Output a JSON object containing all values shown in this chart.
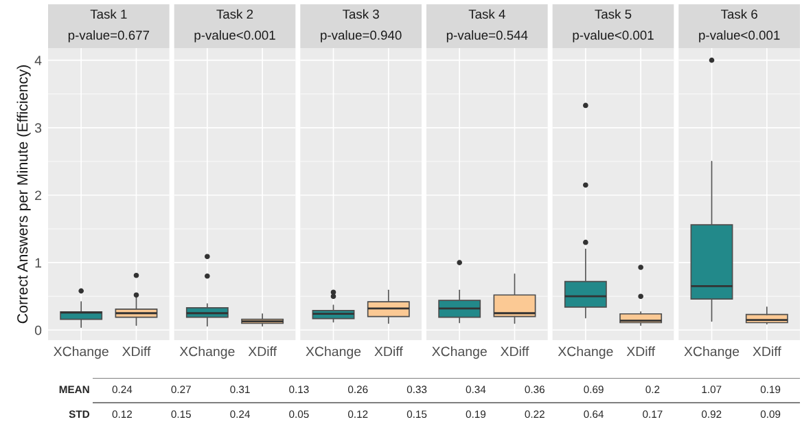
{
  "chart_data": [
    {
      "type": "box",
      "title": "Task 1",
      "subtitle": "p-value=0.677",
      "ylabel": "Correct Answers per Minute (Efficiency)",
      "categories": [
        "XChange",
        "XDiff"
      ],
      "colors": [
        "#22898a",
        "#fbc994"
      ],
      "ylim": [
        -0.15,
        4.18
      ],
      "yticks": [
        0,
        1,
        2,
        3,
        4
      ],
      "grid": true,
      "boxes": [
        {
          "low": 0.04,
          "q1": 0.16,
          "median": 0.26,
          "q3": 0.27,
          "high": 0.42,
          "outliers": [
            0.58
          ]
        },
        {
          "low": 0.07,
          "q1": 0.19,
          "median": 0.25,
          "q3": 0.31,
          "high": 0.48,
          "outliers": [
            0.52,
            0.81
          ]
        }
      ]
    },
    {
      "type": "box",
      "title": "Task 2",
      "subtitle": "p-value<0.001",
      "categories": [
        "XChange",
        "XDiff"
      ],
      "colors": [
        "#22898a",
        "#fbc994"
      ],
      "ylim": [
        -0.15,
        4.18
      ],
      "yticks": [
        0,
        1,
        2,
        3,
        4
      ],
      "grid": true,
      "tick_labels": "x",
      "boxes": [
        {
          "low": 0.06,
          "q1": 0.19,
          "median": 0.25,
          "q3": 0.33,
          "high": 0.39,
          "outliers": [
            0.8,
            1.09
          ]
        },
        {
          "low": 0.06,
          "q1": 0.1,
          "median": 0.13,
          "q3": 0.16,
          "high": 0.24
        }
      ]
    },
    {
      "type": "box",
      "title": "Task 3",
      "subtitle": "p-value=0.940",
      "categories": [
        "XChange",
        "XDiff"
      ],
      "colors": [
        "#22898a",
        "#fbc994"
      ],
      "ylim": [
        -0.15,
        4.18
      ],
      "yticks": [
        0,
        1,
        2,
        3,
        4
      ],
      "grid": true,
      "tick_labels": "x",
      "boxes": [
        {
          "low": 0.12,
          "q1": 0.17,
          "median": 0.24,
          "q3": 0.29,
          "high": 0.37,
          "outliers": [
            0.5,
            0.56
          ]
        },
        {
          "low": 0.1,
          "q1": 0.2,
          "median": 0.32,
          "q3": 0.42,
          "high": 0.59
        }
      ]
    },
    {
      "type": "box",
      "title": "Task 4",
      "subtitle": "p-value=0.544",
      "categories": [
        "XChange",
        "XDiff"
      ],
      "colors": [
        "#22898a",
        "#fbc994"
      ],
      "ylim": [
        -0.15,
        4.18
      ],
      "yticks": [
        0,
        1,
        2,
        3,
        4
      ],
      "grid": true,
      "tick_labels": "x",
      "boxes": [
        {
          "low": 0.11,
          "q1": 0.19,
          "median": 0.32,
          "q3": 0.44,
          "high": 0.59,
          "outliers": [
            1.0
          ]
        },
        {
          "low": 0.1,
          "q1": 0.2,
          "median": 0.25,
          "q3": 0.52,
          "high": 0.83
        }
      ]
    },
    {
      "type": "box",
      "title": "Task 5",
      "subtitle": "p-value<0.001",
      "categories": [
        "XChange",
        "XDiff"
      ],
      "colors": [
        "#22898a",
        "#fbc994"
      ],
      "ylim": [
        -0.15,
        4.18
      ],
      "yticks": [
        0,
        1,
        2,
        3,
        4
      ],
      "grid": true,
      "tick_labels": "x",
      "boxes": [
        {
          "low": 0.18,
          "q1": 0.34,
          "median": 0.5,
          "q3": 0.72,
          "high": 1.2,
          "outliers": [
            1.3,
            2.15,
            3.33
          ]
        },
        {
          "low": 0.07,
          "q1": 0.11,
          "median": 0.14,
          "q3": 0.24,
          "high": 0.27,
          "outliers": [
            0.5,
            0.93
          ]
        }
      ]
    },
    {
      "type": "box",
      "title": "Task 6",
      "subtitle": "p-value<0.001",
      "categories": [
        "XChange",
        "XDiff"
      ],
      "colors": [
        "#22898a",
        "#fbc994"
      ],
      "ylim": [
        -0.15,
        4.18
      ],
      "yticks": [
        0,
        1,
        2,
        3,
        4
      ],
      "grid": true,
      "tick_labels": "x",
      "boxes": [
        {
          "low": 0.13,
          "q1": 0.46,
          "median": 0.65,
          "q3": 1.56,
          "high": 2.5,
          "outliers": [
            4.0
          ]
        },
        {
          "low": 0.09,
          "q1": 0.11,
          "median": 0.15,
          "q3": 0.23,
          "high": 0.34
        }
      ]
    },
    {
      "type": "other",
      "annotations": [
        "MEAN",
        "0.24",
        "0.27",
        "0.31",
        "0.13",
        "0.26",
        "0.33",
        "0.34",
        "0.36",
        "0.69",
        "0.2",
        "1.07",
        "0.19",
        "STD",
        "0.12",
        "0.15",
        "0.24",
        "0.05",
        "0.12",
        "0.15",
        "0.19",
        "0.22",
        "0.64",
        "0.17",
        "0.92",
        "0.09"
      ]
    }
  ]
}
